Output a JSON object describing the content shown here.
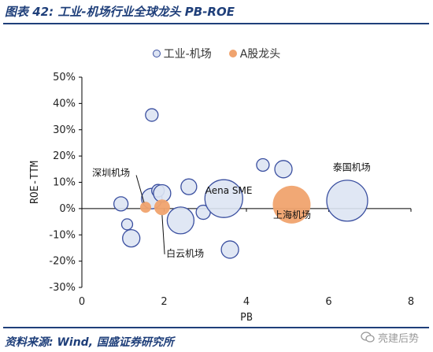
{
  "header": {
    "title": "图表 42:  工业-机场行业全球龙头 PB-ROE"
  },
  "footer": {
    "source": "资料来源:  Wind,  国盛证券研究所",
    "watermark_text": "亮建后势"
  },
  "chart_data": {
    "type": "scatter",
    "title": "",
    "xlabel": "PB",
    "ylabel": "ROE-TTM",
    "xlim": [
      0,
      8
    ],
    "ylim": [
      -30,
      50
    ],
    "xticks": [
      0,
      2,
      4,
      6,
      8
    ],
    "xtick_labels": [
      "0",
      "2",
      "4",
      "6",
      "8"
    ],
    "yticks": [
      -30,
      -20,
      -10,
      0,
      10,
      20,
      30,
      40,
      50
    ],
    "ytick_labels": [
      "-30%",
      "-20%",
      "-10%",
      "0%",
      "10%",
      "20%",
      "30%",
      "40%",
      "50%"
    ],
    "grid": false,
    "legend_position": "top",
    "series": [
      {
        "name": "工业-机场",
        "color": "#dde4f3",
        "stroke": "#3a4fa0",
        "points": [
          {
            "x": 1.7,
            "y": 35.6,
            "size": 8
          },
          {
            "x": 0.95,
            "y": 1.8,
            "size": 9
          },
          {
            "x": 1.1,
            "y": -6.0,
            "size": 7
          },
          {
            "x": 1.2,
            "y": -11.3,
            "size": 11
          },
          {
            "x": 1.7,
            "y": 3.8,
            "size": 13
          },
          {
            "x": 1.85,
            "y": 6.8,
            "size": 8
          },
          {
            "x": 1.95,
            "y": 5.8,
            "size": 11
          },
          {
            "x": 2.6,
            "y": 8.3,
            "size": 10
          },
          {
            "x": 2.4,
            "y": -4.5,
            "size": 17
          },
          {
            "x": 2.95,
            "y": -1.4,
            "size": 9
          },
          {
            "x": 3.45,
            "y": 3.8,
            "size": 24
          },
          {
            "x": 3.6,
            "y": -15.6,
            "size": 11
          },
          {
            "x": 4.4,
            "y": 16.6,
            "size": 8
          },
          {
            "x": 4.9,
            "y": 15.0,
            "size": 11
          },
          {
            "x": 6.45,
            "y": 3.0,
            "size": 26
          }
        ]
      },
      {
        "name": "A股龙头",
        "color": "#f0a36e",
        "stroke": "#f0a36e",
        "points": [
          {
            "x": 1.55,
            "y": 0.5,
            "size": 7
          },
          {
            "x": 1.95,
            "y": 0.5,
            "size": 10
          },
          {
            "x": 5.1,
            "y": 1.5,
            "size": 24
          }
        ]
      }
    ],
    "annotations": [
      {
        "text": "深圳机场",
        "x": 0.25,
        "y": 12.4
      },
      {
        "text": "Aena SME",
        "x": 3.0,
        "y": 5.6
      },
      {
        "text": "泰国机场",
        "x": 6.1,
        "y": 14.5
      },
      {
        "text": "上海机场",
        "x": 4.65,
        "y": -3.7
      },
      {
        "text": "白云机场",
        "x": 2.05,
        "y": -18.3
      }
    ]
  }
}
